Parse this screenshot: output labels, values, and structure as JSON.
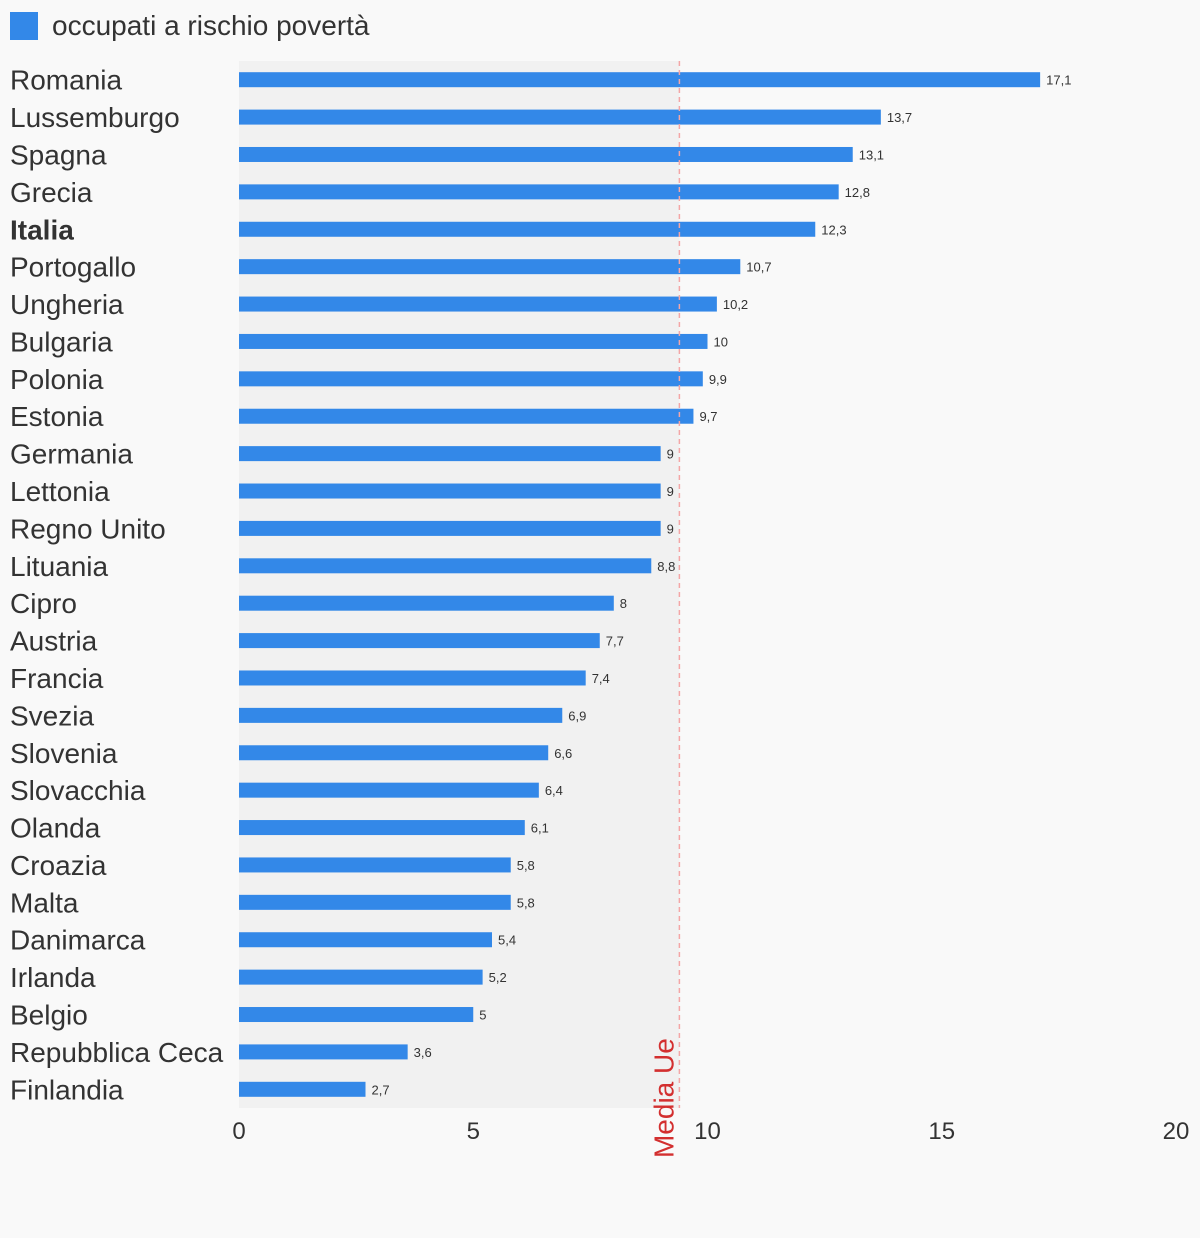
{
  "chart_data": {
    "type": "bar",
    "orientation": "horizontal",
    "title": "",
    "legend": {
      "label": "occupati a rischio povertà",
      "position": "top-left"
    },
    "categories": [
      "Romania",
      "Lussemburgo",
      "Spagna",
      "Grecia",
      "Italia",
      "Portogallo",
      "Ungheria",
      "Bulgaria",
      "Polonia",
      "Estonia",
      "Germania",
      "Lettonia",
      "Regno Unito",
      "Lituania",
      "Cipro",
      "Austria",
      "Francia",
      "Svezia",
      "Slovenia",
      "Slovacchia",
      "Olanda",
      "Croazia",
      "Malta",
      "Danimarca",
      "Irlanda",
      "Belgio",
      "Repubblica Ceca",
      "Finlandia"
    ],
    "values": [
      17.1,
      13.7,
      13.1,
      12.8,
      12.3,
      10.7,
      10.2,
      10,
      9.9,
      9.7,
      9,
      9,
      9,
      8.8,
      8,
      7.7,
      7.4,
      6.9,
      6.6,
      6.4,
      6.1,
      5.8,
      5.8,
      5.4,
      5.2,
      5,
      3.6,
      2.7
    ],
    "value_labels": [
      "17,1",
      "13,7",
      "13,1",
      "12,8",
      "12,3",
      "10,7",
      "10,2",
      "10",
      "9,9",
      "9,7",
      "9",
      "9",
      "9",
      "8,8",
      "8",
      "7,7",
      "7,4",
      "6,9",
      "6,6",
      "6,4",
      "6,1",
      "5,8",
      "5,8",
      "5,4",
      "5,2",
      "5",
      "3,6",
      "2,7"
    ],
    "highlight_category": "Italia",
    "xlim": [
      0,
      20
    ],
    "x_ticks": [
      "0",
      "5",
      "10",
      "15",
      "20"
    ],
    "reference_line": {
      "label": "Media Ue",
      "value": 9.4
    },
    "grid": false,
    "colors": {
      "bar": "#3388e8",
      "reference": "#d32f2f",
      "band": "#f1f1f1"
    }
  }
}
